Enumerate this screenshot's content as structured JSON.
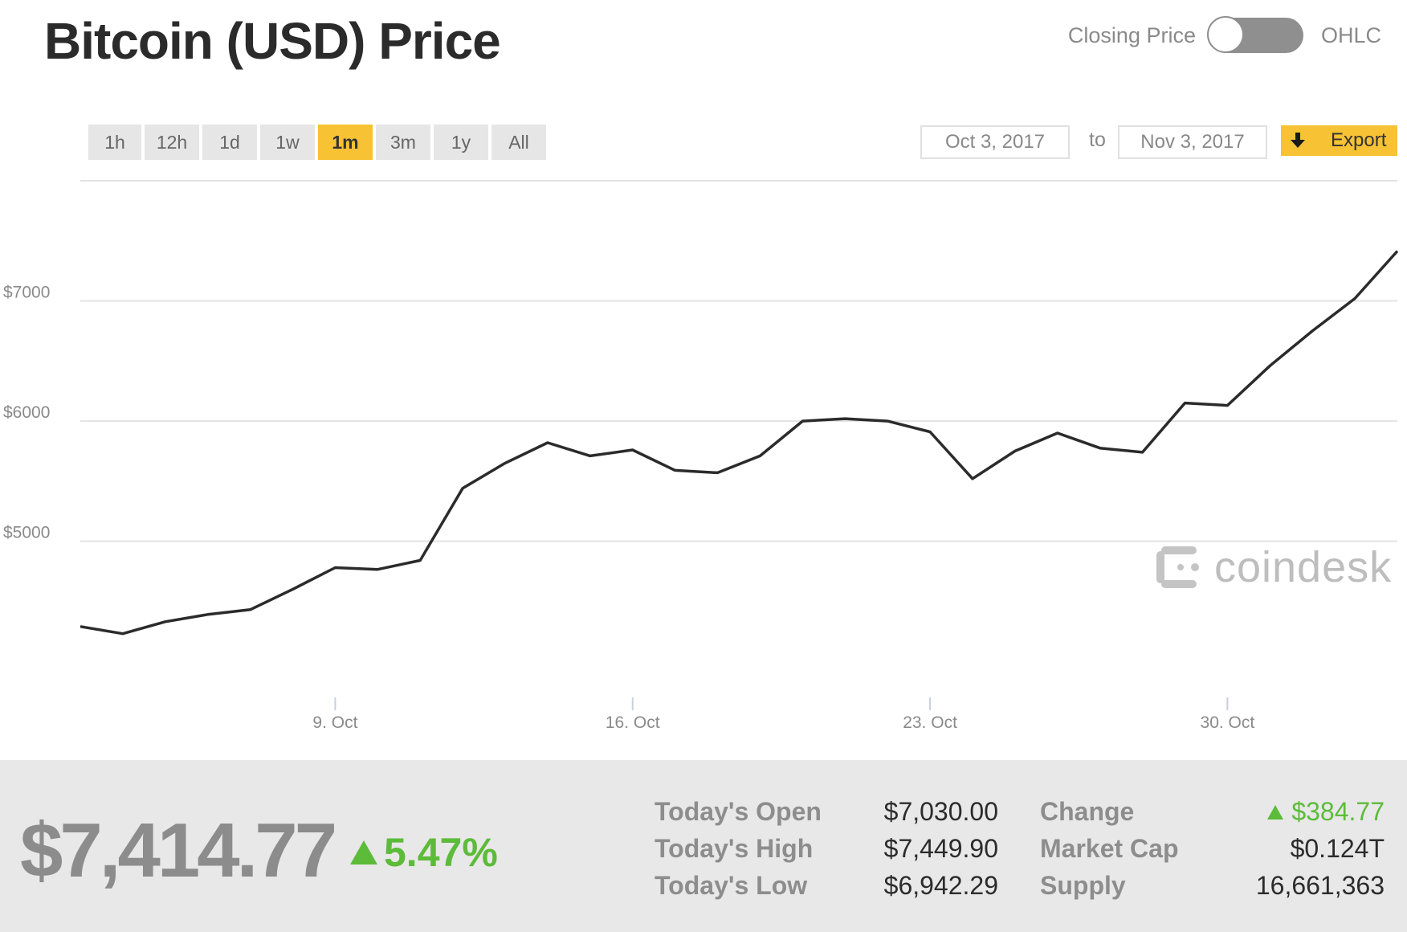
{
  "header": {
    "title": "Bitcoin (USD) Price",
    "toggle_left": "Closing Price",
    "toggle_right": "OHLC"
  },
  "range_buttons": [
    "1h",
    "12h",
    "1d",
    "1w",
    "1m",
    "3m",
    "1y",
    "All"
  ],
  "active_range": "1m",
  "date_range": {
    "from": "Oct 3, 2017",
    "to_label": "to",
    "to": "Nov 3, 2017"
  },
  "export_label": "Export",
  "brand": "coindesk",
  "colors": {
    "accent": "#f7c233",
    "line": "#2b2b2b",
    "up": "#5dbb3a"
  },
  "chart_data": {
    "type": "line",
    "title": "Bitcoin (USD) Price",
    "x": [
      "2017-10-03",
      "2017-10-04",
      "2017-10-05",
      "2017-10-06",
      "2017-10-07",
      "2017-10-08",
      "2017-10-09",
      "2017-10-10",
      "2017-10-11",
      "2017-10-12",
      "2017-10-13",
      "2017-10-14",
      "2017-10-15",
      "2017-10-16",
      "2017-10-17",
      "2017-10-18",
      "2017-10-19",
      "2017-10-20",
      "2017-10-21",
      "2017-10-22",
      "2017-10-23",
      "2017-10-24",
      "2017-10-25",
      "2017-10-26",
      "2017-10-27",
      "2017-10-28",
      "2017-10-29",
      "2017-10-30",
      "2017-10-31",
      "2017-11-01",
      "2017-11-02",
      "2017-11-03"
    ],
    "series": [
      {
        "values": [
          4290,
          4230,
          4330,
          4390,
          4430,
          4600,
          4780,
          4765,
          4840,
          5440,
          5650,
          5820,
          5710,
          5760,
          5590,
          5570,
          5710,
          6000,
          6020,
          6000,
          5910,
          5520,
          5750,
          5900,
          5775,
          5740,
          6150,
          6130,
          6460,
          6750,
          7020,
          7415
        ]
      }
    ],
    "xticks": [
      "9. Oct",
      "16. Oct",
      "23. Oct",
      "30. Oct"
    ],
    "xtick_dates": [
      "2017-10-09",
      "2017-10-16",
      "2017-10-23",
      "2017-10-30"
    ],
    "yticks": [
      "$5000",
      "$6000",
      "$7000"
    ],
    "ytick_values": [
      5000,
      6000,
      7000
    ],
    "ylim": [
      3720,
      8000
    ],
    "xlim": [
      "2017-10-03",
      "2017-11-03"
    ],
    "grid": true,
    "legend": false
  },
  "stats": {
    "price": "$7,414.77",
    "change_pct": "5.47%",
    "rows": [
      {
        "label": "Today's Open",
        "value": "$7,030.00"
      },
      {
        "label": "Today's High",
        "value": "$7,449.90"
      },
      {
        "label": "Today's Low",
        "value": "$6,942.29"
      }
    ],
    "rows2": [
      {
        "label": "Change",
        "value": "$384.77"
      },
      {
        "label": "Market Cap",
        "value": "$0.124T"
      },
      {
        "label": "Supply",
        "value": "16,661,363"
      }
    ]
  }
}
